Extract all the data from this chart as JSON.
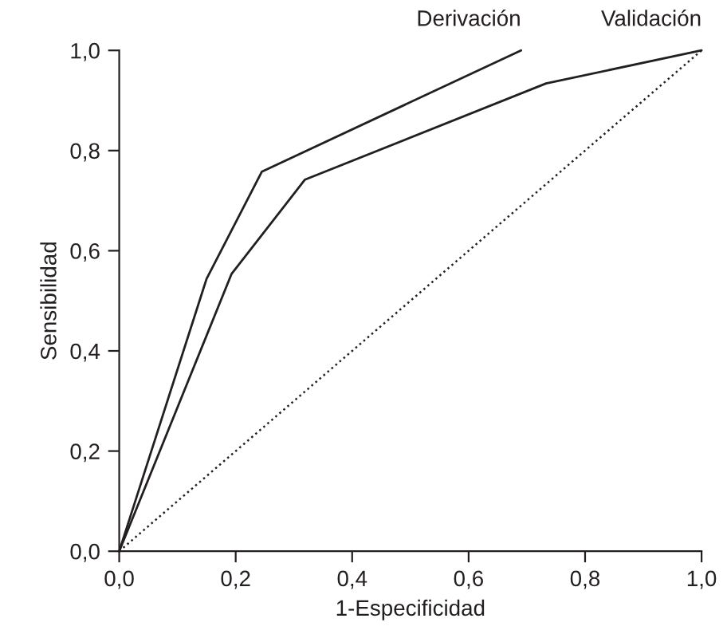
{
  "chart_data": {
    "type": "line",
    "xlabel": "1-Especificidad",
    "ylabel": "Sensibilidad",
    "xlim": [
      0,
      1
    ],
    "ylim": [
      0,
      1
    ],
    "xticks": [
      {
        "value": 0,
        "label": "0,0"
      },
      {
        "value": 0.2,
        "label": "0,2"
      },
      {
        "value": 0.4,
        "label": "0,4"
      },
      {
        "value": 0.6,
        "label": "0,6"
      },
      {
        "value": 0.8,
        "label": "0,8"
      },
      {
        "value": 1,
        "label": "1,0"
      }
    ],
    "yticks": [
      {
        "value": 0,
        "label": "0,0"
      },
      {
        "value": 0.2,
        "label": "0,2"
      },
      {
        "value": 0.4,
        "label": "0,4"
      },
      {
        "value": 0.6,
        "label": "0,6"
      },
      {
        "value": 0.8,
        "label": "0,8"
      },
      {
        "value": 1,
        "label": "1,0"
      }
    ],
    "grid": false,
    "legend": false,
    "marker": "none",
    "series": [
      {
        "name": "Derivación",
        "color": "#231f20",
        "line_style": "solid",
        "x": [
          0,
          0.15,
          0.245,
          0.69
        ],
        "values": [
          0,
          0.544,
          0.758,
          1.0
        ]
      },
      {
        "name": "Validación",
        "color": "#231f20",
        "line_style": "solid",
        "x": [
          0,
          0.193,
          0.319,
          0.733,
          1.0
        ],
        "values": [
          0,
          0.554,
          0.742,
          0.934,
          1.0
        ]
      },
      {
        "color": "#231f20",
        "line_style": "dotted",
        "x": [
          0,
          1
        ],
        "values": [
          0,
          1
        ]
      }
    ]
  }
}
